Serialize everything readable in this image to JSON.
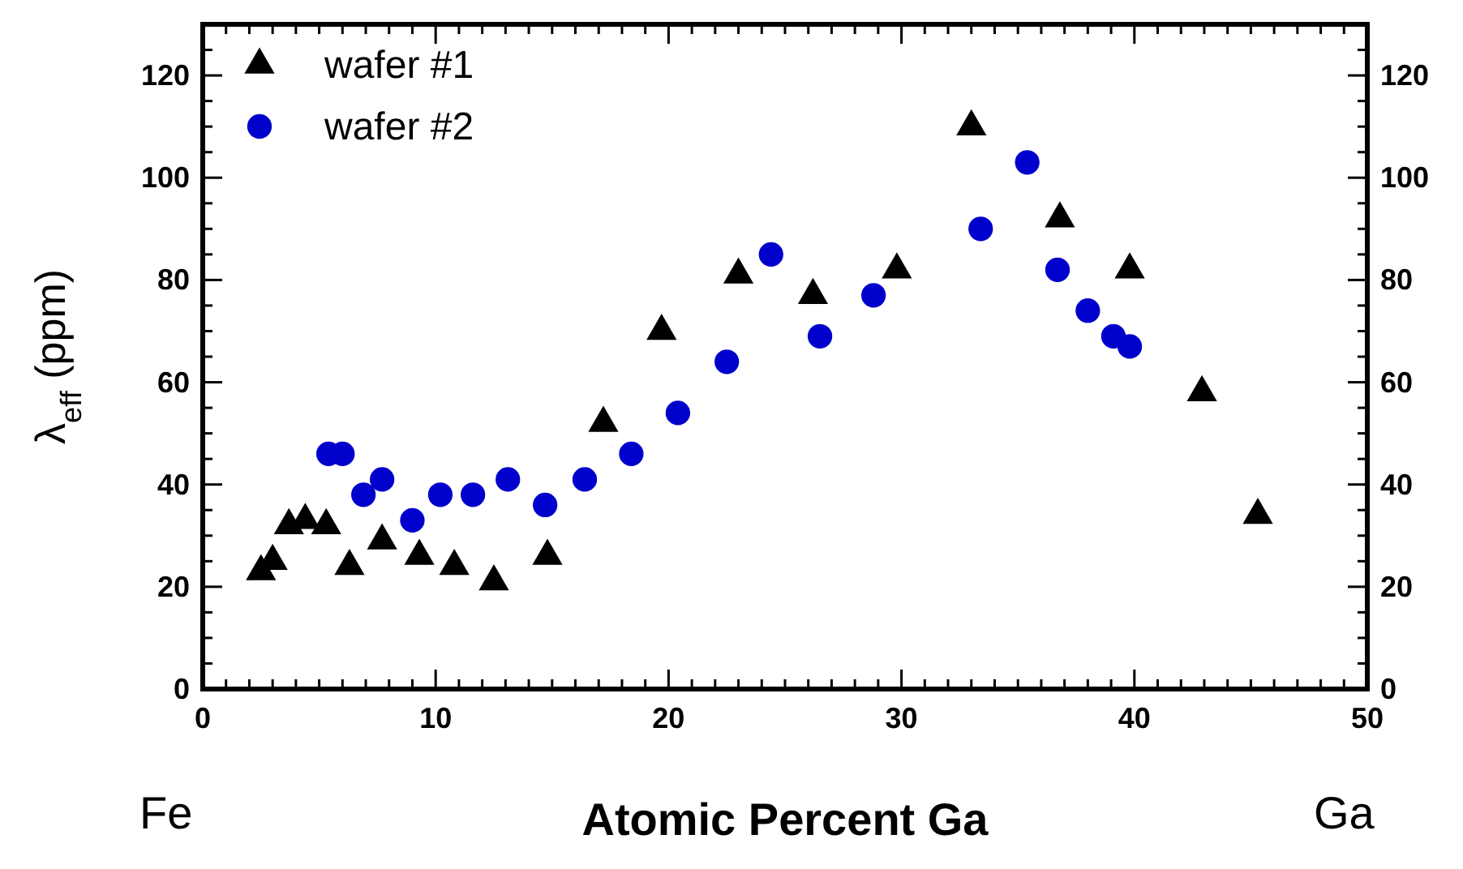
{
  "chart_data": {
    "type": "scatter",
    "xlabel": "Atomic Percent Ga",
    "ylabel": "λ$_{eff}$ (ppm)",
    "annotations": [
      "Fe",
      "Ga"
    ],
    "xlim": [
      0,
      50
    ],
    "xticks": [
      0,
      {
        "value": 1,
        "label": null
      },
      {
        "value": 2,
        "label": null
      },
      {
        "value": 3,
        "label": null
      },
      {
        "value": 4,
        "label": null
      },
      {
        "value": 5,
        "label": null
      },
      {
        "value": 6,
        "label": null
      },
      {
        "value": 7,
        "label": null
      },
      {
        "value": 8,
        "label": null
      },
      {
        "value": 9,
        "label": null
      },
      10,
      {
        "value": 11,
        "label": null
      },
      {
        "value": 12,
        "label": null
      },
      {
        "value": 13,
        "label": null
      },
      {
        "value": 14,
        "label": null
      },
      {
        "value": 15,
        "label": null
      },
      {
        "value": 16,
        "label": null
      },
      {
        "value": 17,
        "label": null
      },
      {
        "value": 18,
        "label": null
      },
      {
        "value": 19,
        "label": null
      },
      20,
      {
        "value": 21,
        "label": null
      },
      {
        "value": 22,
        "label": null
      },
      {
        "value": 23,
        "label": null
      },
      {
        "value": 24,
        "label": null
      },
      {
        "value": 25,
        "label": null
      },
      {
        "value": 26,
        "label": null
      },
      {
        "value": 27,
        "label": null
      },
      {
        "value": 28,
        "label": null
      },
      {
        "value": 29,
        "label": null
      },
      30,
      {
        "value": 31,
        "label": null
      },
      {
        "value": 32,
        "label": null
      },
      {
        "value": 33,
        "label": null
      },
      {
        "value": 34,
        "label": null
      },
      {
        "value": 35,
        "label": null
      },
      {
        "value": 36,
        "label": null
      },
      {
        "value": 37,
        "label": null
      },
      {
        "value": 38,
        "label": null
      },
      {
        "value": 39,
        "label": null
      },
      40,
      {
        "value": 41,
        "label": null
      },
      {
        "value": 42,
        "label": null
      },
      {
        "value": 43,
        "label": null
      },
      {
        "value": 44,
        "label": null
      },
      {
        "value": 45,
        "label": null
      },
      {
        "value": 46,
        "label": null
      },
      {
        "value": 47,
        "label": null
      },
      {
        "value": 48,
        "label": null
      },
      {
        "value": 49,
        "label": null
      },
      50
    ],
    "ylim": [
      0,
      130
    ],
    "yticks": [
      0,
      {
        "value": 5,
        "label": null
      },
      {
        "value": 10,
        "label": null
      },
      {
        "value": 15,
        "label": null
      },
      20,
      {
        "value": 25,
        "label": null
      },
      {
        "value": 30,
        "label": null
      },
      {
        "value": 35,
        "label": null
      },
      40,
      {
        "value": 45,
        "label": null
      },
      {
        "value": 50,
        "label": null
      },
      {
        "value": 55,
        "label": null
      },
      60,
      {
        "value": 65,
        "label": null
      },
      {
        "value": 70,
        "label": null
      },
      {
        "value": 75,
        "label": null
      },
      80,
      {
        "value": 85,
        "label": null
      },
      {
        "value": 90,
        "label": null
      },
      {
        "value": 95,
        "label": null
      },
      100,
      {
        "value": 105,
        "label": null
      },
      {
        "value": 110,
        "label": null
      },
      {
        "value": 115,
        "label": null
      },
      120,
      {
        "value": 125,
        "label": null
      }
    ],
    "y2lim": [
      0,
      130
    ],
    "y2ticks": [
      0,
      {
        "value": 5,
        "label": null
      },
      {
        "value": 10,
        "label": null
      },
      {
        "value": 15,
        "label": null
      },
      20,
      {
        "value": 25,
        "label": null
      },
      {
        "value": 30,
        "label": null
      },
      {
        "value": 35,
        "label": null
      },
      40,
      {
        "value": 45,
        "label": null
      },
      {
        "value": 50,
        "label": null
      },
      {
        "value": 55,
        "label": null
      },
      60,
      {
        "value": 65,
        "label": null
      },
      {
        "value": 70,
        "label": null
      },
      {
        "value": 75,
        "label": null
      },
      80,
      {
        "value": 85,
        "label": null
      },
      {
        "value": 90,
        "label": null
      },
      {
        "value": 95,
        "label": null
      },
      100,
      {
        "value": 105,
        "label": null
      },
      {
        "value": 110,
        "label": null
      },
      {
        "value": 115,
        "label": null
      },
      120,
      {
        "value": 125,
        "label": null
      }
    ],
    "grid": false,
    "legend": "top left",
    "series": [
      {
        "name": "wafer #1",
        "color": "#000000",
        "marker": "triangle",
        "x": [
          2.5,
          3.0,
          3.7,
          4.4,
          5.3,
          6.3,
          7.7,
          9.3,
          10.8,
          12.5,
          14.8,
          17.2,
          19.7,
          23.0,
          26.2,
          29.8,
          33.0,
          36.8,
          39.8,
          42.9,
          45.3
        ],
        "values": [
          23,
          25,
          32,
          33,
          32,
          24,
          29,
          26,
          24,
          21,
          26,
          52,
          70,
          81,
          77,
          82,
          110,
          92,
          82,
          58,
          34
        ]
      },
      {
        "name": "wafer #2",
        "color": "#0000cc",
        "marker": "circle",
        "x": [
          5.4,
          6.0,
          6.9,
          7.7,
          9.0,
          10.2,
          11.6,
          13.1,
          14.7,
          16.4,
          18.4,
          20.4,
          22.5,
          24.4,
          26.5,
          28.8,
          33.4,
          35.4,
          36.7,
          38.0,
          39.1,
          39.8
        ],
        "values": [
          46,
          46,
          38,
          41,
          33,
          38,
          38,
          41,
          36,
          41,
          46,
          54,
          64,
          85,
          69,
          77,
          90,
          103,
          82,
          74,
          69,
          67
        ]
      }
    ]
  }
}
